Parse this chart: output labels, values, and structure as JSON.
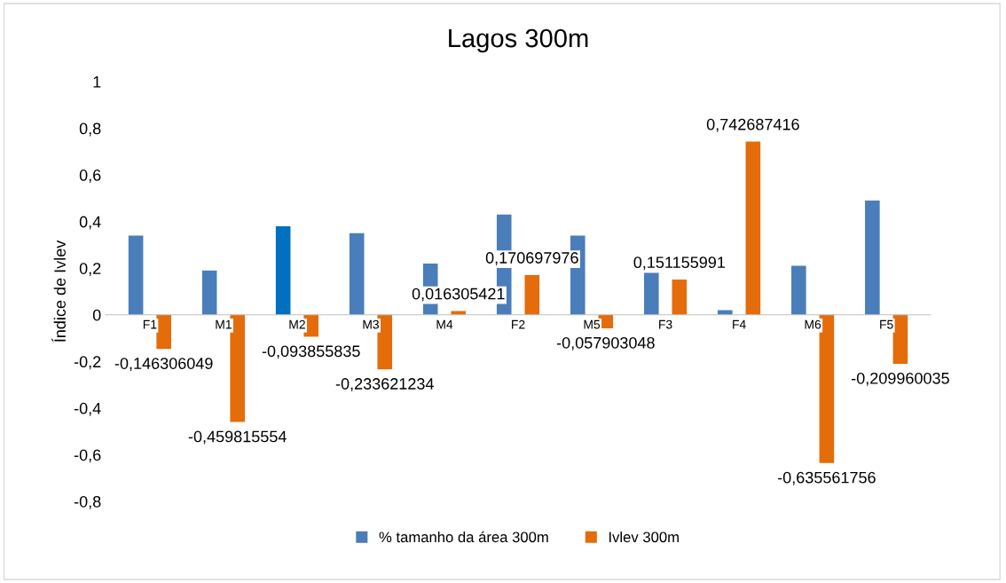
{
  "chart_data": {
    "type": "bar",
    "title": "Lagos 300m",
    "ylabel": "Índice de Ivlev",
    "categories": [
      "F1",
      "M1",
      "M2",
      "M3",
      "M4",
      "F2",
      "M5",
      "F3",
      "F4",
      "M6",
      "F5"
    ],
    "series": [
      {
        "name": "% tamanho da área 300m",
        "color": "#4a7ebb",
        "colors": [
          "#4a7ebb",
          "#4a7ebb",
          "#0070c0",
          "#4a7ebb",
          "#4a7ebb",
          "#4a7ebb",
          "#4a7ebb",
          "#4a7ebb",
          "#4a7ebb",
          "#4a7ebb",
          "#4a7ebb"
        ],
        "values": [
          0.34,
          0.19,
          0.38,
          0.35,
          0.22,
          0.43,
          0.34,
          0.18,
          0.02,
          0.21,
          0.49
        ]
      },
      {
        "name": "Ivlev 300m",
        "color": "#e46c0a",
        "values": [
          -0.146306049,
          -0.459815554,
          -0.093855835,
          -0.233621234,
          0.016305421,
          0.170697976,
          -0.057903048,
          0.151155991,
          0.742687416,
          -0.635561756,
          -0.209960035
        ],
        "value_labels": [
          "-0,146306049",
          "-0,459815554",
          "-0,093855835",
          "-0,233621234",
          "0,016305421",
          "0,170697976",
          "-0,057903048",
          "0,151155991",
          "0,742687416",
          "-0,635561756",
          "-0,209960035"
        ]
      }
    ],
    "ylim": [
      -0.8,
      1
    ],
    "yticks": [
      {
        "value": -0.8,
        "label": "-0,8"
      },
      {
        "value": -0.6,
        "label": "-0,6"
      },
      {
        "value": -0.4,
        "label": "-0,4"
      },
      {
        "value": -0.2,
        "label": "-0,2"
      },
      0,
      {
        "value": 0.2,
        "label": "0,2"
      },
      {
        "value": 0.4,
        "label": "0,4"
      },
      {
        "value": 0.6,
        "label": "0,6"
      },
      {
        "value": 0.8,
        "label": "0,8"
      },
      1
    ],
    "grid": false,
    "legend": "bottom"
  }
}
